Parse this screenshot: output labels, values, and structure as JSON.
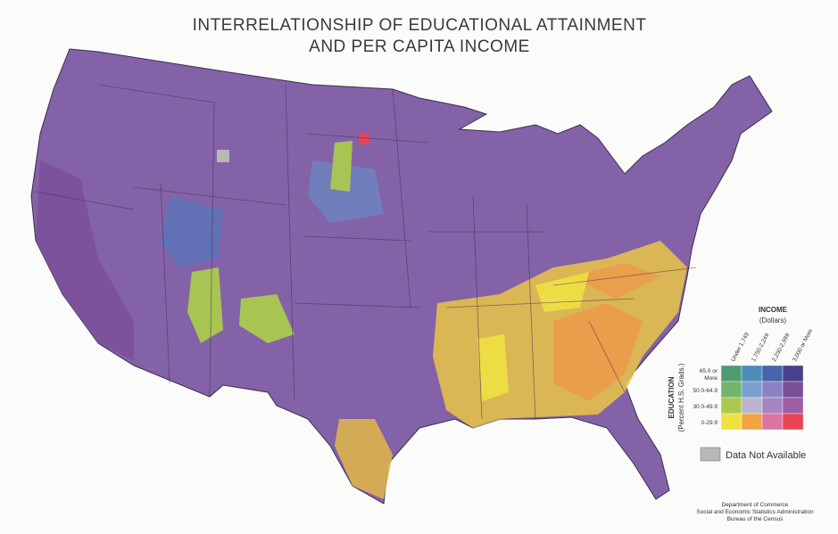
{
  "title": [
    "INTERRELATIONSHIP OF EDUCATIONAL ATTAINMENT",
    "AND PER CAPITA INCOME"
  ],
  "legend": {
    "income_title": "INCOME",
    "income_unit": "(Dollars)",
    "education_title": "EDUCATION",
    "education_unit": "(Percent H.S. Grads.)",
    "columns": [
      "Under 1,749",
      "1,750-2,249",
      "2,250-2,999",
      "3,000 or More"
    ],
    "rows": [
      [
        "65.0 or",
        "More"
      ],
      [
        "50.0-64.9"
      ],
      [
        "30.0-49.9"
      ],
      [
        "0-29.9"
      ]
    ],
    "colors": [
      [
        "#4f9a72",
        "#4c8cb8",
        "#4764ac",
        "#4a3f8c"
      ],
      [
        "#72b46c",
        "#7aa2cc",
        "#8a82c2",
        "#7a4f98"
      ],
      [
        "#acc852",
        "#bcb4cc",
        "#a586c2",
        "#9c5ea2"
      ],
      [
        "#f0e044",
        "#f0a444",
        "#dc74a2",
        "#e84452"
      ]
    ],
    "na_label": "Data Not Available",
    "na_color": "#b8b8b8"
  },
  "credits": [
    "Department of Commerce",
    "Social and Economic Statistics Administration",
    "Bureau of the Census"
  ]
}
